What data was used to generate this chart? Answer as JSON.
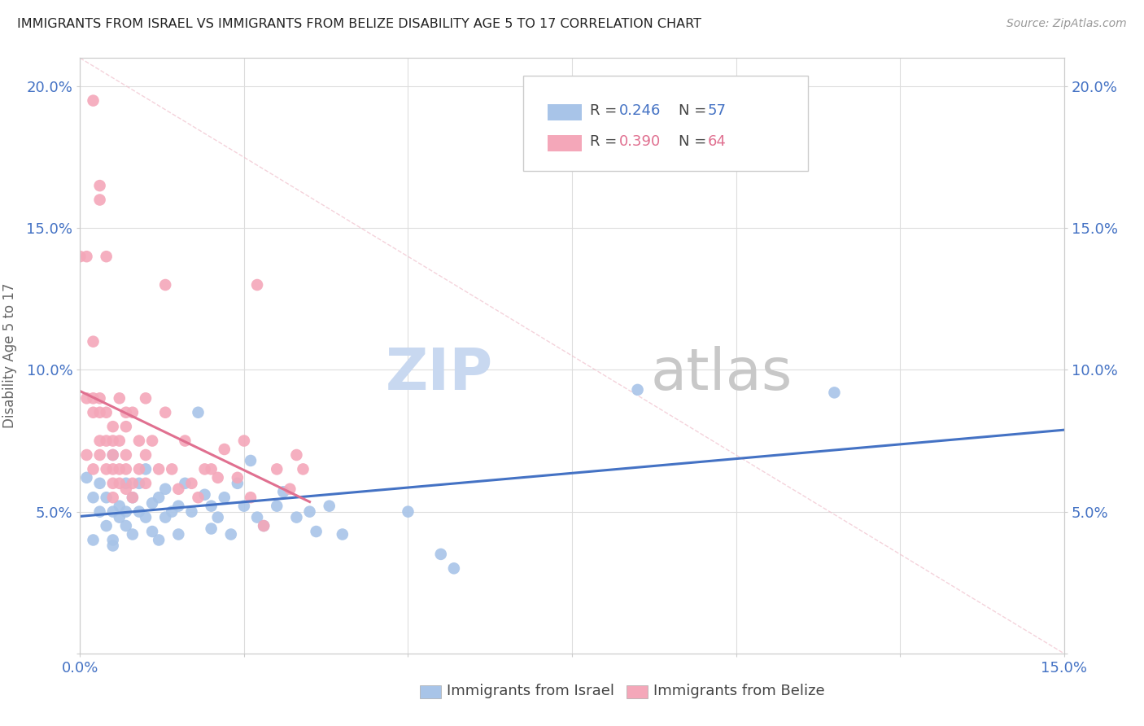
{
  "title": "IMMIGRANTS FROM ISRAEL VS IMMIGRANTS FROM BELIZE DISABILITY AGE 5 TO 17 CORRELATION CHART",
  "source": "Source: ZipAtlas.com",
  "ylabel": "Disability Age 5 to 17",
  "xlim": [
    0.0,
    0.15
  ],
  "ylim": [
    0.0,
    0.21
  ],
  "israel_color": "#a8c4e8",
  "belize_color": "#f4a7b9",
  "israel_line_color": "#4472c4",
  "belize_line_color": "#e07090",
  "diagonal_color": "#f0c0cc",
  "legend_r_israel": "0.246",
  "legend_n_israel": "57",
  "legend_r_belize": "0.390",
  "legend_n_belize": "64",
  "israel_points": [
    [
      0.001,
      0.062
    ],
    [
      0.002,
      0.055
    ],
    [
      0.002,
      0.04
    ],
    [
      0.003,
      0.05
    ],
    [
      0.003,
      0.06
    ],
    [
      0.004,
      0.045
    ],
    [
      0.004,
      0.055
    ],
    [
      0.005,
      0.04
    ],
    [
      0.005,
      0.07
    ],
    [
      0.005,
      0.05
    ],
    [
      0.006,
      0.048
    ],
    [
      0.006,
      0.052
    ],
    [
      0.007,
      0.05
    ],
    [
      0.007,
      0.06
    ],
    [
      0.007,
      0.045
    ],
    [
      0.008,
      0.055
    ],
    [
      0.008,
      0.042
    ],
    [
      0.009,
      0.06
    ],
    [
      0.009,
      0.05
    ],
    [
      0.01,
      0.048
    ],
    [
      0.01,
      0.065
    ],
    [
      0.011,
      0.053
    ],
    [
      0.011,
      0.043
    ],
    [
      0.012,
      0.055
    ],
    [
      0.012,
      0.04
    ],
    [
      0.013,
      0.058
    ],
    [
      0.013,
      0.048
    ],
    [
      0.014,
      0.05
    ],
    [
      0.015,
      0.052
    ],
    [
      0.015,
      0.042
    ],
    [
      0.016,
      0.06
    ],
    [
      0.017,
      0.05
    ],
    [
      0.018,
      0.085
    ],
    [
      0.019,
      0.056
    ],
    [
      0.02,
      0.044
    ],
    [
      0.02,
      0.052
    ],
    [
      0.021,
      0.048
    ],
    [
      0.022,
      0.055
    ],
    [
      0.023,
      0.042
    ],
    [
      0.024,
      0.06
    ],
    [
      0.025,
      0.052
    ],
    [
      0.026,
      0.068
    ],
    [
      0.027,
      0.048
    ],
    [
      0.028,
      0.045
    ],
    [
      0.03,
      0.052
    ],
    [
      0.031,
      0.057
    ],
    [
      0.033,
      0.048
    ],
    [
      0.035,
      0.05
    ],
    [
      0.036,
      0.043
    ],
    [
      0.038,
      0.052
    ],
    [
      0.04,
      0.042
    ],
    [
      0.05,
      0.05
    ],
    [
      0.055,
      0.035
    ],
    [
      0.057,
      0.03
    ],
    [
      0.085,
      0.093
    ],
    [
      0.115,
      0.092
    ],
    [
      0.005,
      0.038
    ]
  ],
  "belize_points": [
    [
      0.0,
      0.14
    ],
    [
      0.001,
      0.14
    ],
    [
      0.001,
      0.09
    ],
    [
      0.001,
      0.07
    ],
    [
      0.002,
      0.195
    ],
    [
      0.002,
      0.11
    ],
    [
      0.002,
      0.09
    ],
    [
      0.002,
      0.085
    ],
    [
      0.003,
      0.165
    ],
    [
      0.003,
      0.16
    ],
    [
      0.003,
      0.09
    ],
    [
      0.003,
      0.085
    ],
    [
      0.003,
      0.075
    ],
    [
      0.004,
      0.085
    ],
    [
      0.004,
      0.075
    ],
    [
      0.004,
      0.065
    ],
    [
      0.004,
      0.14
    ],
    [
      0.005,
      0.08
    ],
    [
      0.005,
      0.075
    ],
    [
      0.005,
      0.07
    ],
    [
      0.005,
      0.065
    ],
    [
      0.005,
      0.06
    ],
    [
      0.005,
      0.055
    ],
    [
      0.006,
      0.09
    ],
    [
      0.006,
      0.075
    ],
    [
      0.006,
      0.065
    ],
    [
      0.006,
      0.06
    ],
    [
      0.007,
      0.085
    ],
    [
      0.007,
      0.08
    ],
    [
      0.007,
      0.07
    ],
    [
      0.007,
      0.065
    ],
    [
      0.007,
      0.058
    ],
    [
      0.008,
      0.085
    ],
    [
      0.008,
      0.06
    ],
    [
      0.008,
      0.055
    ],
    [
      0.009,
      0.075
    ],
    [
      0.009,
      0.065
    ],
    [
      0.01,
      0.09
    ],
    [
      0.01,
      0.07
    ],
    [
      0.01,
      0.06
    ],
    [
      0.011,
      0.075
    ],
    [
      0.012,
      0.065
    ],
    [
      0.013,
      0.085
    ],
    [
      0.013,
      0.13
    ],
    [
      0.014,
      0.065
    ],
    [
      0.015,
      0.058
    ],
    [
      0.016,
      0.075
    ],
    [
      0.017,
      0.06
    ],
    [
      0.018,
      0.055
    ],
    [
      0.019,
      0.065
    ],
    [
      0.02,
      0.065
    ],
    [
      0.021,
      0.062
    ],
    [
      0.022,
      0.072
    ],
    [
      0.024,
      0.062
    ],
    [
      0.025,
      0.075
    ],
    [
      0.026,
      0.055
    ],
    [
      0.027,
      0.13
    ],
    [
      0.028,
      0.045
    ],
    [
      0.03,
      0.065
    ],
    [
      0.032,
      0.058
    ],
    [
      0.033,
      0.07
    ],
    [
      0.034,
      0.065
    ],
    [
      0.003,
      0.07
    ],
    [
      0.002,
      0.065
    ]
  ],
  "xtick_vals": [
    0.0,
    0.025,
    0.05,
    0.075,
    0.1,
    0.125,
    0.15
  ],
  "ytick_vals": [
    0.0,
    0.05,
    0.1,
    0.15,
    0.2
  ],
  "tick_color": "#4472c4",
  "grid_color": "#dddddd",
  "spine_color": "#cccccc",
  "label_color": "#666666",
  "watermark_zip_color": "#c8d8f0",
  "watermark_atlas_color": "#c8c8c8"
}
